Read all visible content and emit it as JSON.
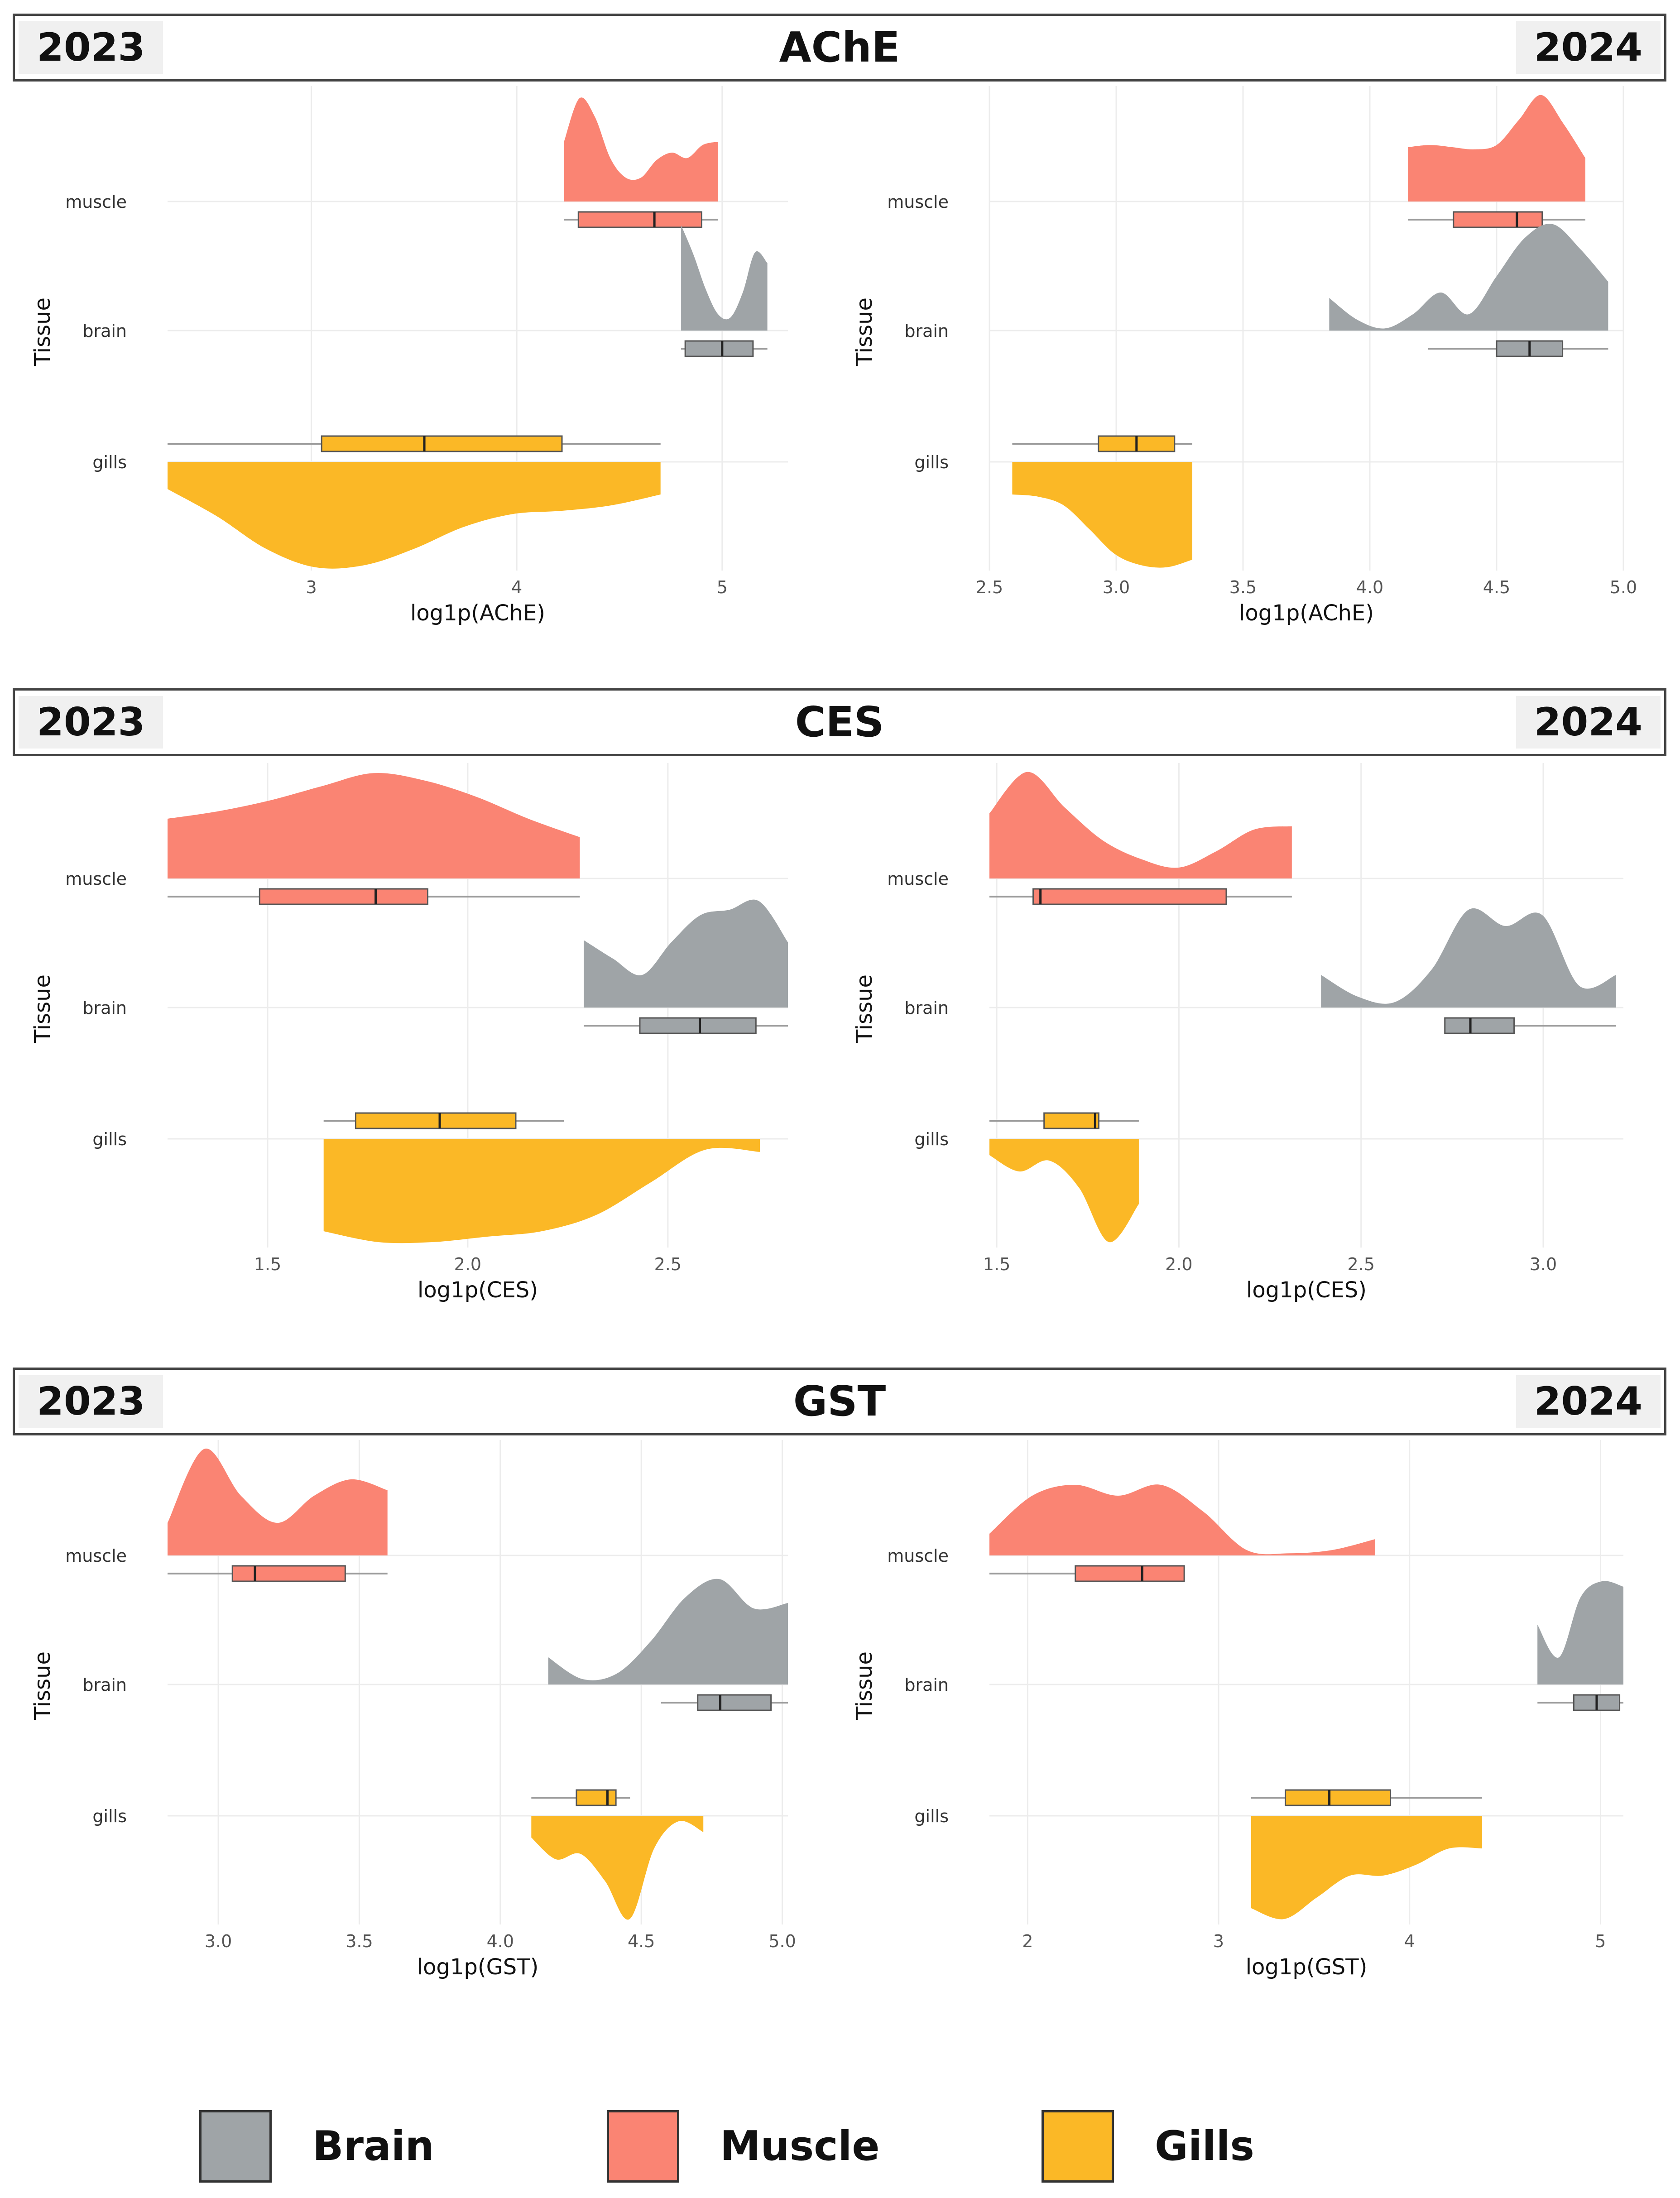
{
  "legend": [
    {
      "label": "Brain",
      "color": "#9fa4a7"
    },
    {
      "label": "Muscle",
      "color": "#fa8473"
    },
    {
      "label": "Gills",
      "color": "#fbb826"
    }
  ],
  "colors": {
    "brain": "#9fa4a7",
    "muscle": "#fa8473",
    "gills": "#fbb826",
    "whisker": "#9a9a9a",
    "grid": "#ececec",
    "median": "#222222"
  },
  "sections": [
    {
      "title": "AChE",
      "year_left": "2023",
      "year_right": "2024"
    },
    {
      "title": "CES",
      "year_left": "2023",
      "year_right": "2024"
    },
    {
      "title": "GST",
      "year_left": "2023",
      "year_right": "2024"
    }
  ],
  "chart_data": [
    {
      "type": "raincloud",
      "section": "AChE",
      "year": "2023",
      "xlabel": "log1p(AChE)",
      "ylabel": "Tissue",
      "xlim": [
        2.3,
        5.32
      ],
      "xticks": [
        3,
        4,
        5
      ],
      "xtick_labels": [
        "3",
        "4",
        "5"
      ],
      "tissues": [
        "muscle",
        "brain",
        "gills"
      ],
      "series": [
        {
          "tissue": "muscle",
          "min": 4.23,
          "q1": 4.3,
          "median": 4.67,
          "q3": 4.9,
          "max": 4.98,
          "range": [
            4.23,
            4.98
          ],
          "density": [
            0.55,
            0.95,
            0.78,
            0.4,
            0.22,
            0.22,
            0.38,
            0.45,
            0.4,
            0.52,
            0.55
          ]
        },
        {
          "tissue": "brain",
          "min": 4.8,
          "q1": 4.82,
          "median": 5.0,
          "q3": 5.15,
          "max": 5.22,
          "range": [
            4.8,
            5.22
          ],
          "density": [
            0.97,
            0.7,
            0.38,
            0.15,
            0.12,
            0.35,
            0.72,
            0.62
          ]
        },
        {
          "tissue": "gills",
          "min": 2.3,
          "q1": 3.05,
          "median": 3.55,
          "q3": 4.22,
          "max": 4.7,
          "range": [
            2.3,
            4.7
          ],
          "density": [
            0.25,
            0.5,
            0.8,
            0.97,
            0.95,
            0.8,
            0.6,
            0.48,
            0.45,
            0.4,
            0.3
          ]
        }
      ]
    },
    {
      "type": "raincloud",
      "section": "AChE",
      "year": "2024",
      "xlabel": "log1p(AChE)",
      "ylabel": "Tissue",
      "xlim": [
        2.5,
        5.0
      ],
      "xticks": [
        2.5,
        3.0,
        3.5,
        4.0,
        4.5,
        5.0
      ],
      "xtick_labels": [
        "2.5",
        "3.0",
        "3.5",
        "4.0",
        "4.5",
        "5.0"
      ],
      "tissues": [
        "muscle",
        "brain",
        "gills"
      ],
      "series": [
        {
          "tissue": "muscle",
          "min": 4.15,
          "q1": 4.33,
          "median": 4.58,
          "q3": 4.68,
          "max": 4.85,
          "range": [
            4.15,
            4.85
          ],
          "density": [
            0.5,
            0.52,
            0.5,
            0.48,
            0.52,
            0.75,
            0.98,
            0.72,
            0.4
          ]
        },
        {
          "tissue": "brain",
          "min": 4.23,
          "q1": 4.5,
          "median": 4.63,
          "q3": 4.76,
          "max": 4.94,
          "range": [
            3.84,
            4.94
          ],
          "density": [
            0.3,
            0.1,
            0.02,
            0.15,
            0.35,
            0.15,
            0.5,
            0.85,
            0.98,
            0.75,
            0.45
          ]
        },
        {
          "tissue": "gills",
          "min": 2.59,
          "q1": 2.93,
          "median": 3.08,
          "q3": 3.23,
          "max": 3.3,
          "range": [
            2.59,
            3.3
          ],
          "density": [
            0.3,
            0.32,
            0.4,
            0.62,
            0.85,
            0.95,
            0.97,
            0.9
          ]
        }
      ]
    },
    {
      "type": "raincloud",
      "section": "CES",
      "year": "2023",
      "xlabel": "log1p(CES)",
      "ylabel": "Tissue",
      "xlim": [
        1.25,
        2.8
      ],
      "xticks": [
        1.5,
        2.0,
        2.5
      ],
      "xtick_labels": [
        "1.5",
        "2.0",
        "2.5"
      ],
      "tissues": [
        "muscle",
        "brain",
        "gills"
      ],
      "series": [
        {
          "tissue": "muscle",
          "min": 1.25,
          "q1": 1.48,
          "median": 1.77,
          "q3": 1.9,
          "max": 2.28,
          "range": [
            1.25,
            2.28
          ],
          "density": [
            0.55,
            0.62,
            0.72,
            0.85,
            0.97,
            0.9,
            0.75,
            0.55,
            0.38
          ]
        },
        {
          "tissue": "brain",
          "min": 2.29,
          "q1": 2.43,
          "median": 2.58,
          "q3": 2.72,
          "max": 2.8,
          "range": [
            2.29,
            2.8
          ],
          "density": [
            0.62,
            0.45,
            0.3,
            0.6,
            0.85,
            0.9,
            0.98,
            0.6
          ]
        },
        {
          "tissue": "gills",
          "min": 1.64,
          "q1": 1.72,
          "median": 1.93,
          "q3": 2.12,
          "max": 2.24,
          "range": [
            1.64,
            2.73
          ],
          "density": [
            0.85,
            0.95,
            0.95,
            0.9,
            0.85,
            0.7,
            0.4,
            0.1,
            0.12
          ]
        }
      ]
    },
    {
      "type": "raincloud",
      "section": "CES",
      "year": "2024",
      "xlabel": "log1p(CES)",
      "ylabel": "Tissue",
      "xlim": [
        1.48,
        3.22
      ],
      "xticks": [
        1.5,
        2.0,
        2.5,
        3.0
      ],
      "xtick_labels": [
        "1.5",
        "2.0",
        "2.5",
        "3.0"
      ],
      "tissues": [
        "muscle",
        "brain",
        "gills"
      ],
      "series": [
        {
          "tissue": "muscle",
          "min": 1.48,
          "q1": 1.6,
          "median": 1.62,
          "q3": 2.13,
          "max": 2.31,
          "range": [
            1.48,
            2.31
          ],
          "density": [
            0.6,
            0.98,
            0.65,
            0.35,
            0.18,
            0.1,
            0.25,
            0.45,
            0.48
          ]
        },
        {
          "tissue": "brain",
          "min": 2.73,
          "q1": 2.73,
          "median": 2.8,
          "q3": 2.92,
          "max": 3.2,
          "range": [
            2.39,
            3.2
          ],
          "density": [
            0.3,
            0.1,
            0.05,
            0.35,
            0.9,
            0.75,
            0.85,
            0.2,
            0.3
          ]
        },
        {
          "tissue": "gills",
          "min": 1.48,
          "q1": 1.63,
          "median": 1.77,
          "q3": 1.78,
          "max": 1.89,
          "range": [
            1.48,
            1.89
          ],
          "density": [
            0.15,
            0.3,
            0.2,
            0.45,
            0.95,
            0.6
          ]
        }
      ]
    },
    {
      "type": "raincloud",
      "section": "GST",
      "year": "2023",
      "xlabel": "log1p(GST)",
      "ylabel": "Tissue",
      "xlim": [
        2.82,
        5.02
      ],
      "xticks": [
        3.0,
        3.5,
        4.0,
        4.5,
        5.0
      ],
      "xtick_labels": [
        "3.0",
        "3.5",
        "4.0",
        "4.5",
        "5.0"
      ],
      "tissues": [
        "muscle",
        "brain",
        "gills"
      ],
      "series": [
        {
          "tissue": "muscle",
          "min": 2.82,
          "q1": 3.05,
          "median": 3.13,
          "q3": 3.45,
          "max": 3.6,
          "range": [
            2.82,
            3.6
          ],
          "density": [
            0.3,
            0.98,
            0.55,
            0.3,
            0.55,
            0.7,
            0.6
          ]
        },
        {
          "tissue": "brain",
          "min": 4.57,
          "q1": 4.7,
          "median": 4.78,
          "q3": 4.96,
          "max": 5.02,
          "range": [
            4.17,
            5.02
          ],
          "density": [
            0.25,
            0.05,
            0.1,
            0.4,
            0.8,
            0.97,
            0.7,
            0.75
          ]
        },
        {
          "tissue": "gills",
          "min": 4.11,
          "q1": 4.27,
          "median": 4.38,
          "q3": 4.41,
          "max": 4.46,
          "range": [
            4.11,
            4.72
          ],
          "density": [
            0.2,
            0.4,
            0.35,
            0.6,
            0.95,
            0.3,
            0.05,
            0.15
          ]
        }
      ]
    },
    {
      "type": "raincloud",
      "section": "GST",
      "year": "2024",
      "xlabel": "log1p(GST)",
      "ylabel": "Tissue",
      "xlim": [
        1.8,
        5.12
      ],
      "xticks": [
        2,
        3,
        4,
        5
      ],
      "xtick_labels": [
        "2",
        "3",
        "4",
        "5"
      ],
      "tissues": [
        "muscle",
        "brain",
        "gills"
      ],
      "series": [
        {
          "tissue": "muscle",
          "min": 1.8,
          "q1": 2.25,
          "median": 2.6,
          "q3": 2.82,
          "max": 2.82,
          "range": [
            1.8,
            3.82
          ],
          "density": [
            0.2,
            0.55,
            0.65,
            0.55,
            0.65,
            0.4,
            0.05,
            0.02,
            0.05,
            0.15
          ]
        },
        {
          "tissue": "brain",
          "min": 4.67,
          "q1": 4.86,
          "median": 4.98,
          "q3": 5.1,
          "max": 5.12,
          "range": [
            4.67,
            5.12
          ],
          "density": [
            0.55,
            0.25,
            0.8,
            0.95,
            0.9
          ]
        },
        {
          "tissue": "gills",
          "min": 3.17,
          "q1": 3.35,
          "median": 3.58,
          "q3": 3.9,
          "max": 4.38,
          "range": [
            3.17,
            4.38
          ],
          "density": [
            0.85,
            0.95,
            0.75,
            0.55,
            0.55,
            0.45,
            0.3,
            0.3
          ]
        }
      ]
    }
  ]
}
